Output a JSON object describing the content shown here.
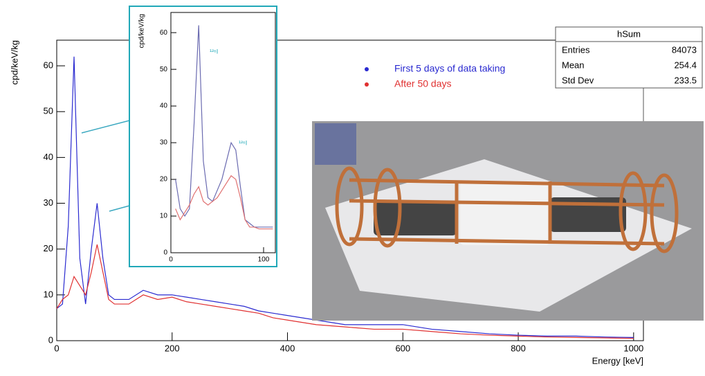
{
  "chart_data": [
    {
      "type": "line",
      "y_label": "cpd/keV/kg",
      "x_label": "Energy [keV]",
      "x": [
        0,
        10,
        20,
        30,
        40,
        50,
        60,
        70,
        80,
        90,
        100,
        125,
        150,
        175,
        200,
        225,
        250,
        275,
        300,
        325,
        350,
        375,
        400,
        450,
        500,
        550,
        600,
        650,
        700,
        750,
        800,
        850,
        900,
        950,
        1000
      ],
      "series": [
        {
          "name": "First 5 days of data taking",
          "color": "#2a2ad0",
          "values": [
            7,
            8,
            25,
            62,
            18,
            8,
            20,
            30,
            18,
            10,
            9,
            9,
            11,
            10,
            10,
            9.5,
            9,
            8.5,
            8,
            7.5,
            6.5,
            6,
            5.5,
            4.5,
            3.5,
            3.5,
            3.5,
            2.5,
            2,
            1.5,
            1.2,
            1,
            1,
            0.8,
            0.7
          ]
        },
        {
          "name": "After 50 days",
          "color": "#e03030",
          "values": [
            7,
            9,
            10,
            14,
            12,
            10,
            15,
            21,
            15,
            9,
            8,
            8,
            10,
            9,
            9.5,
            8.5,
            8,
            7.5,
            7,
            6.5,
            6,
            5,
            4.5,
            3.5,
            3,
            2.5,
            2.5,
            2,
            1.5,
            1.2,
            1,
            0.8,
            0.7,
            0.6,
            0.5
          ]
        }
      ],
      "xlim": [
        0,
        1017
      ],
      "ylim": [
        0,
        65.6
      ],
      "xticks": [
        0,
        200,
        400,
        600,
        800,
        1000
      ],
      "yticks": [
        0,
        10,
        20,
        30,
        40,
        50,
        60
      ],
      "stats": {
        "title": "hSum",
        "rows": [
          [
            "Entries",
            84073
          ],
          [
            "Mean",
            254.4
          ],
          [
            "Std Dev",
            233.5
          ]
        ]
      }
    },
    {
      "type": "line",
      "y_label": "cpd/keV/kg",
      "x": [
        5,
        10,
        15,
        20,
        25,
        30,
        35,
        40,
        45,
        50,
        55,
        60,
        65,
        70,
        75,
        80,
        85,
        90,
        95,
        100,
        105,
        110
      ],
      "series": [
        {
          "color": "#6a6ab0",
          "values": [
            20,
            12,
            10,
            12,
            35,
            62,
            25,
            15,
            14,
            17,
            20,
            25,
            30,
            28,
            18,
            9,
            8,
            7,
            7,
            7,
            7,
            7
          ]
        },
        {
          "color": "#e07070",
          "values": [
            12,
            9,
            11,
            13,
            16,
            18,
            14,
            13,
            14,
            15,
            17,
            19,
            21,
            20,
            15,
            9,
            7,
            7,
            6.5,
            6.5,
            6.5,
            6.5
          ]
        }
      ],
      "xlim": [
        0,
        112.7
      ],
      "ylim": [
        0,
        65.5
      ],
      "xticks": [
        0,
        100
      ],
      "yticks": [
        0,
        10,
        20,
        30,
        40,
        50,
        60
      ],
      "annotations": [
        "¹²⁶I",
        "¹²⁶I"
      ]
    }
  ]
}
